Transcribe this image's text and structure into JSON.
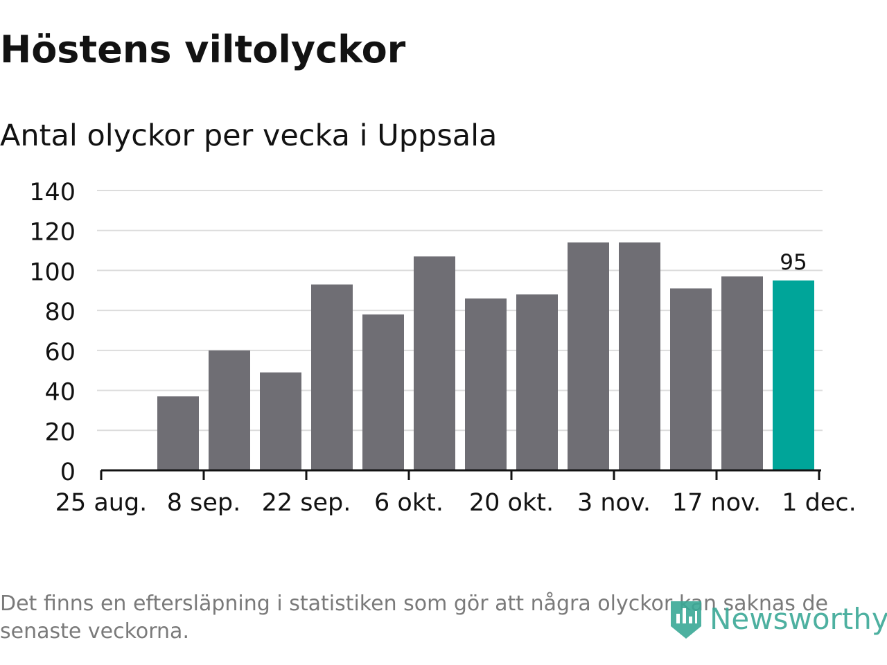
{
  "title": "Höstens viltolyckor",
  "subtitle": "Antal olyckor per vecka i Uppsala",
  "footnote": "Det finns en eftersläpning i statistiken som gör att några olyckor kan saknas de senaste veckorna.",
  "logo": {
    "text": "Newsworthy",
    "icon": "newsworthy-logo-icon",
    "color": "#3aa896"
  },
  "colors": {
    "bar": "#6f6e74",
    "highlight": "#00a599",
    "grid": "#dcdcdc",
    "axis": "#121212"
  },
  "chart_data": {
    "type": "bar",
    "title": "Höstens viltolyckor",
    "subtitle": "Antal olyckor per vecka i Uppsala",
    "xlabel": "",
    "ylabel": "",
    "ylim": [
      0,
      140
    ],
    "yticks": [
      0,
      20,
      40,
      60,
      80,
      100,
      120,
      140
    ],
    "grid": true,
    "legend": "none",
    "xticks": [
      "25 aug.",
      "8 sep.",
      "22 sep.",
      "6 okt.",
      "20 okt.",
      "3 nov.",
      "17 nov.",
      "1 dec."
    ],
    "values": [
      37,
      60,
      49,
      93,
      78,
      107,
      86,
      88,
      114,
      114,
      91,
      97,
      95
    ],
    "highlight_index": 12,
    "highlight_label": "95"
  }
}
